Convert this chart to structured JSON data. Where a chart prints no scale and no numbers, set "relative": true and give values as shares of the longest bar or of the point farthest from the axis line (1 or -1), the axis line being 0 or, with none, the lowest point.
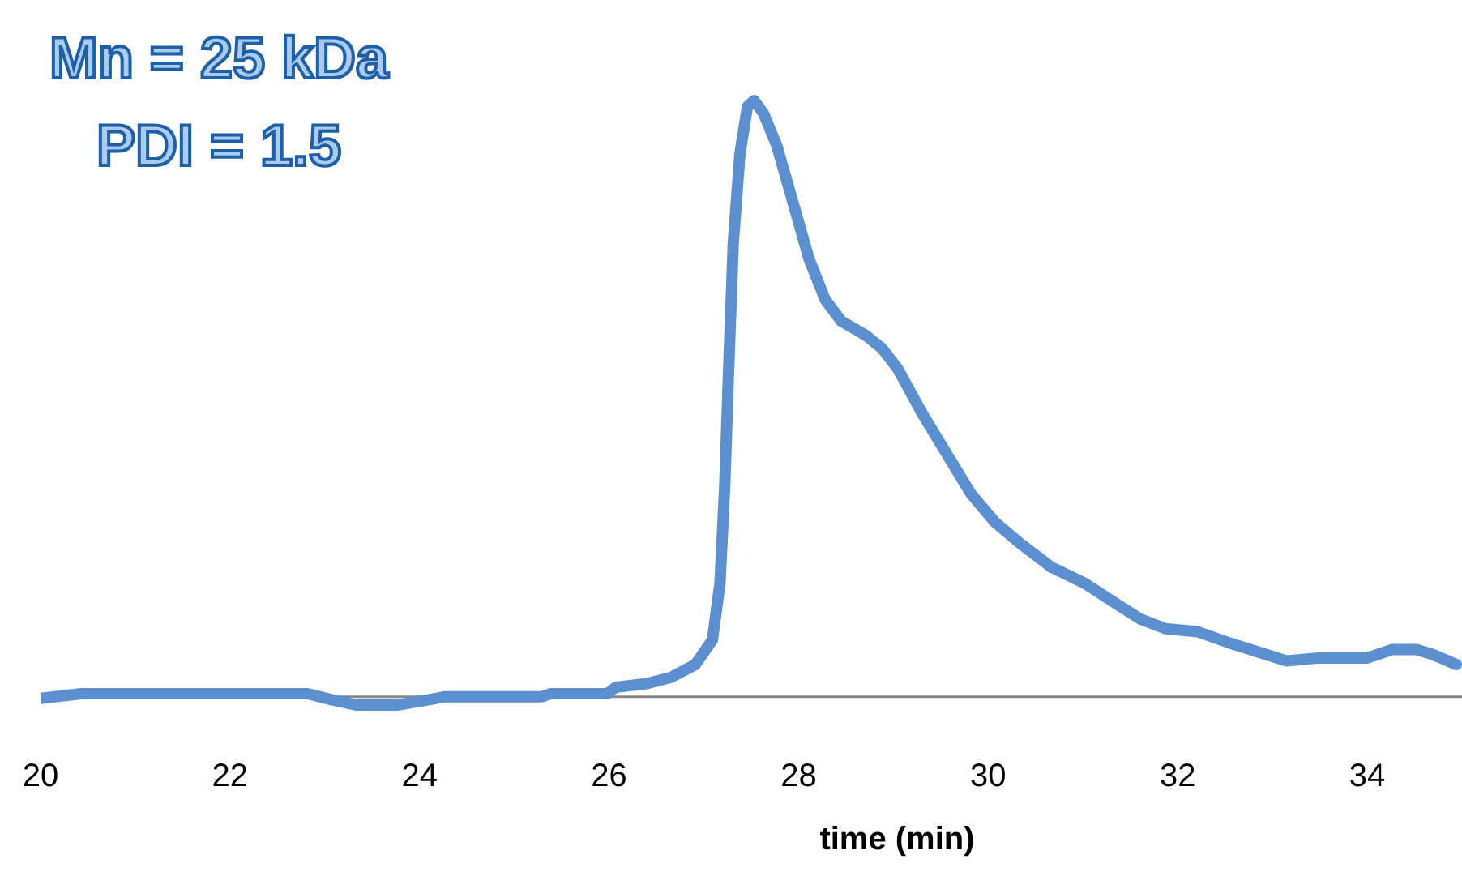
{
  "chart_data": {
    "type": "line",
    "relative": true,
    "xlabel": "time (min)",
    "annotations": [
      "Mn = 25 kDa",
      "PDI = 1.5"
    ],
    "xlim": [
      20,
      35
    ],
    "xticks": [
      20,
      22,
      24,
      26,
      28,
      30,
      32,
      34
    ],
    "marker": "none",
    "line_style": "solid",
    "x": [
      20,
      20.43,
      22.82,
      23.07,
      23.33,
      23.76,
      24.1,
      24.27,
      25.29,
      25.38,
      25.98,
      26.07,
      26.4,
      26.66,
      26.91,
      27.09,
      27.17,
      27.22,
      27.26,
      27.31,
      27.38,
      27.46,
      27.53,
      27.63,
      27.77,
      27.94,
      28.11,
      28.28,
      28.45,
      28.71,
      28.88,
      29.05,
      29.3,
      29.56,
      29.82,
      30.07,
      30.33,
      30.67,
      31.02,
      31.36,
      31.61,
      31.87,
      32.21,
      32.55,
      32.89,
      33.15,
      33.49,
      34.0,
      34.26,
      34.52,
      34.69,
      34.94
    ],
    "series": [
      {
        "color": "#5b8fcf",
        "values": [
          -0.003,
          0.005,
          0.005,
          -0.005,
          -0.014,
          -0.014,
          -0.005,
          0,
          0,
          0.005,
          0.005,
          0.016,
          0.022,
          0.033,
          0.054,
          0.095,
          0.19,
          0.353,
          0.543,
          0.76,
          0.91,
          0.99,
          1,
          0.978,
          0.924,
          0.829,
          0.734,
          0.666,
          0.63,
          0.606,
          0.584,
          0.549,
          0.476,
          0.408,
          0.34,
          0.293,
          0.258,
          0.217,
          0.19,
          0.155,
          0.13,
          0.114,
          0.109,
          0.09,
          0.073,
          0.06,
          0.065,
          0.065,
          0.079,
          0.079,
          0.071,
          0.054
        ]
      }
    ]
  }
}
